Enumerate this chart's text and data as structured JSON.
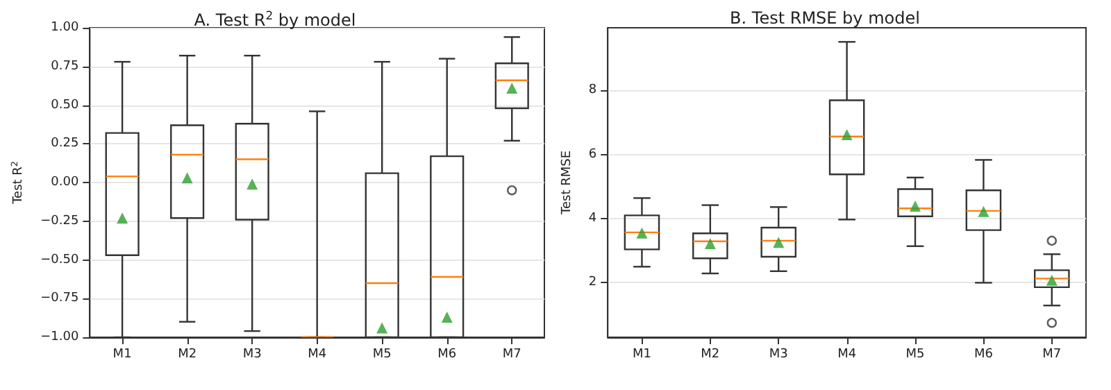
{
  "chart_data": [
    {
      "type": "box",
      "title": "A. Test R$^{2}$ by model",
      "ylabel": "Test R$^{2}$",
      "categories": [
        "M1",
        "M2",
        "M3",
        "M4",
        "M5",
        "M6",
        "M7"
      ],
      "ylim": [
        -1,
        1
      ],
      "yticks": [
        {
          "value": -1,
          "label": "−1.00"
        },
        {
          "value": -0.75,
          "label": "−0.75"
        },
        {
          "value": -0.5,
          "label": "−0.50"
        },
        {
          "value": -0.25,
          "label": "−0.25"
        },
        {
          "value": 0,
          "label": "0.00"
        },
        {
          "value": 0.25,
          "label": "0.25"
        },
        {
          "value": 0.5,
          "label": "0.50"
        },
        {
          "value": 0.75,
          "label": "0.75"
        },
        {
          "value": 1,
          "label": "1.00"
        }
      ],
      "grid": "y",
      "marker": "triangle",
      "series": [
        {
          "color": "#333333",
          "boxes": [
            {
              "low": -1,
              "q1": -0.47,
              "median": 0.04,
              "q3": 0.32,
              "high": 0.78,
              "mean": -0.23
            },
            {
              "low": -0.9,
              "q1": -0.23,
              "median": 0.18,
              "q3": 0.37,
              "high": 0.82,
              "mean": 0.03
            },
            {
              "low": -0.96,
              "q1": -0.24,
              "median": 0.15,
              "q3": 0.38,
              "high": 0.82,
              "mean": -0.01
            },
            {
              "low": -1,
              "q1": -1,
              "median": -1,
              "q3": -1,
              "high": 0.46
            },
            {
              "low": -1,
              "q1": -1,
              "median": -0.65,
              "q3": 0.06,
              "high": 0.78,
              "mean": -0.94
            },
            {
              "low": -1,
              "q1": -1,
              "median": -0.61,
              "q3": 0.17,
              "high": 0.8,
              "mean": -0.87
            },
            {
              "low": 0.27,
              "q1": 0.48,
              "median": 0.66,
              "q3": 0.77,
              "high": 0.94,
              "mean": 0.61,
              "outliers": [
                -0.05
              ]
            }
          ]
        }
      ]
    },
    {
      "type": "box",
      "title": "B. Test RMSE by model",
      "ylabel": "Test RMSE",
      "categories": [
        "M1",
        "M2",
        "M3",
        "M4",
        "M5",
        "M6",
        "M7"
      ],
      "ylim": [
        0.3,
        9.95
      ],
      "yticks": [
        2,
        4,
        6,
        8
      ],
      "grid": "y",
      "marker": "triangle",
      "series": [
        {
          "color": "#333333",
          "boxes": [
            {
              "low": 2.5,
              "q1": 3.04,
              "median": 3.57,
              "q3": 4.1,
              "high": 4.64,
              "mean": 3.55
            },
            {
              "low": 2.29,
              "q1": 2.76,
              "median": 3.29,
              "q3": 3.54,
              "high": 4.42,
              "mean": 3.22
            },
            {
              "low": 2.36,
              "q1": 2.81,
              "median": 3.31,
              "q3": 3.72,
              "high": 4.36,
              "mean": 3.26
            },
            {
              "low": 3.97,
              "q1": 5.38,
              "median": 6.56,
              "q3": 7.69,
              "high": 9.51,
              "mean": 6.62
            },
            {
              "low": 3.14,
              "q1": 4.07,
              "median": 4.32,
              "q3": 4.92,
              "high": 5.28,
              "mean": 4.39
            },
            {
              "low": 2.0,
              "q1": 3.64,
              "median": 4.24,
              "q3": 4.88,
              "high": 5.83,
              "mean": 4.22
            },
            {
              "low": 1.29,
              "q1": 1.86,
              "median": 2.13,
              "q3": 2.39,
              "high": 2.89,
              "mean": 2.08,
              "outliers": [
                3.31,
                0.75
              ]
            }
          ]
        }
      ]
    }
  ]
}
